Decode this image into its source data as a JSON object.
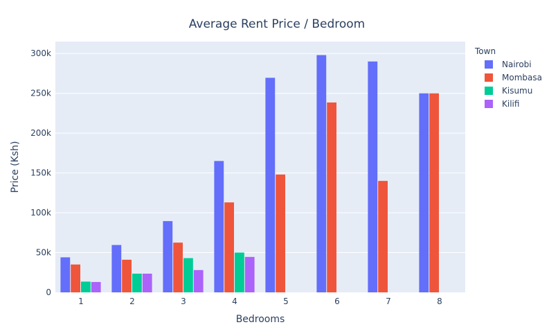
{
  "chart_data": {
    "type": "bar",
    "title": "Average Rent Price / Bedroom",
    "xlabel": "Bedrooms",
    "ylabel": "Price (Ksh)",
    "categories": [
      "1",
      "2",
      "3",
      "4",
      "5",
      "6",
      "7",
      "8"
    ],
    "ylim": [
      0,
      315000
    ],
    "yticks": [
      {
        "value": 0,
        "label": "0"
      },
      {
        "value": 50000,
        "label": "50k"
      },
      {
        "value": 100000,
        "label": "100k"
      },
      {
        "value": 150000,
        "label": "150k"
      },
      {
        "value": 200000,
        "label": "200k"
      },
      {
        "value": 250000,
        "label": "250k"
      },
      {
        "value": 300000,
        "label": "300k"
      }
    ],
    "grid": true,
    "legend": {
      "title": "Town",
      "position": "right"
    },
    "series": [
      {
        "name": "Nairobi",
        "color": "#636efa",
        "values": [
          44000,
          59500,
          89500,
          165000,
          269500,
          298000,
          290000,
          250000
        ]
      },
      {
        "name": "Mombasa",
        "color": "#ef553b",
        "values": [
          35000,
          41000,
          62500,
          113000,
          148000,
          238500,
          140000,
          250000
        ]
      },
      {
        "name": "Kisumu",
        "color": "#00cc96",
        "values": [
          13500,
          23500,
          43000,
          50000,
          null,
          null,
          null,
          null
        ]
      },
      {
        "name": "Kilifi",
        "color": "#ab63fa",
        "values": [
          13000,
          23500,
          28000,
          44500,
          null,
          null,
          null,
          null
        ]
      }
    ],
    "plot_bg": "#e5ecf6",
    "grid_color": "#ffffff"
  }
}
